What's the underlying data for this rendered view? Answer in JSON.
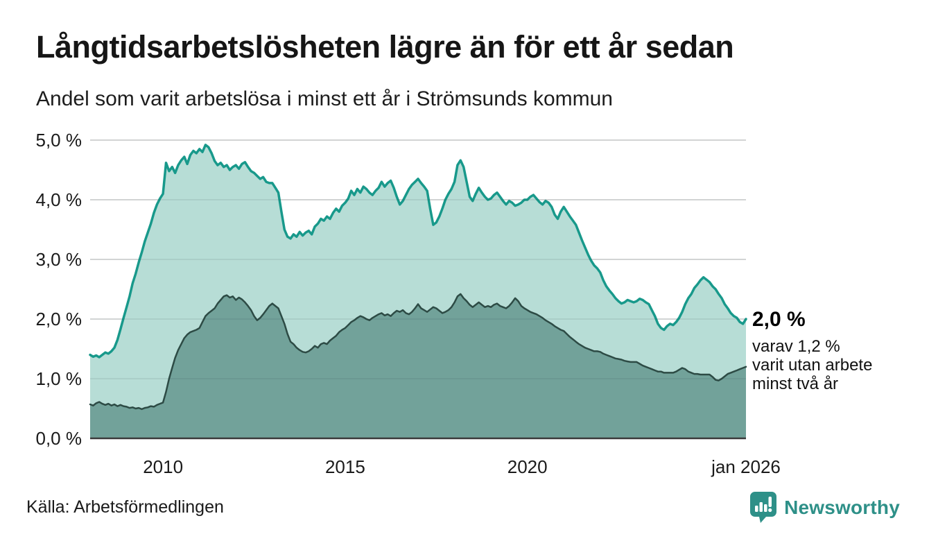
{
  "title": "Långtidsarbetslösheten lägre än för ett år sedan",
  "subtitle": "Andel som varit arbetslösa i minst ett år i Strömsunds kommun",
  "source": "Källa: Arbetsförmedlingen",
  "branding": {
    "name": "Newsworthy",
    "icon": "newsworthy-speech-bubble-bar-chart-icon",
    "accent_color": "#2e9088"
  },
  "annotation": {
    "value_label": "2,0 %",
    "detail_lines": "varav 1,2 %\nvarit utan arbete\nminst två år"
  },
  "chart_data": {
    "type": "area",
    "title": "Långtidsarbetslösheten lägre än för ett år sedan",
    "subtitle": "Andel som varit arbetslösa i minst ett år i Strömsunds kommun",
    "xlabel": "",
    "ylabel": "",
    "ylim": [
      0,
      5
    ],
    "grid": true,
    "stacked": false,
    "legend_position": "annotation-at-line-end",
    "y_ticks": [
      {
        "value": 5,
        "label": "5,0 %"
      },
      {
        "value": 4,
        "label": "4,0 %"
      },
      {
        "value": 3,
        "label": "3,0 %"
      },
      {
        "value": 2,
        "label": "2,0 %"
      },
      {
        "value": 1,
        "label": "1,0 %"
      },
      {
        "value": 0,
        "label": "0,0 %"
      }
    ],
    "x_ticks": [
      {
        "value": 2010.0,
        "label": "2010"
      },
      {
        "value": 2015.0,
        "label": "2015"
      },
      {
        "value": 2020.0,
        "label": "2020"
      },
      {
        "value": 2026.0,
        "label": "jan 2026"
      }
    ],
    "x_range": [
      2008.0,
      2026.0
    ],
    "x_start": "jan 2008",
    "x_end": "jan 2026",
    "frequency": "monthly",
    "colors": {
      "line_1yr": "#18998b",
      "fill_1yr": "#b5dcd5",
      "line_2yr": "#2d4b45",
      "fill_2yr": "#70a098",
      "gridline": "#d8d8d8",
      "baseline": "#3b3b3b"
    },
    "series": [
      {
        "name": "Andel arbetslösa minst ett år",
        "latest_value": 2.0,
        "values": [
          1.4,
          1.37,
          1.39,
          1.36,
          1.4,
          1.44,
          1.42,
          1.46,
          1.52,
          1.65,
          1.83,
          2.02,
          2.2,
          2.38,
          2.6,
          2.76,
          2.95,
          3.12,
          3.3,
          3.45,
          3.6,
          3.78,
          3.92,
          4.02,
          4.1,
          4.62,
          4.48,
          4.55,
          4.45,
          4.58,
          4.66,
          4.72,
          4.6,
          4.75,
          4.82,
          4.78,
          4.85,
          4.8,
          4.92,
          4.88,
          4.78,
          4.65,
          4.58,
          4.62,
          4.55,
          4.58,
          4.5,
          4.55,
          4.58,
          4.52,
          4.6,
          4.63,
          4.55,
          4.48,
          4.45,
          4.4,
          4.35,
          4.38,
          4.3,
          4.28,
          4.28,
          4.2,
          4.12,
          3.8,
          3.5,
          3.38,
          3.35,
          3.42,
          3.38,
          3.46,
          3.4,
          3.45,
          3.48,
          3.42,
          3.55,
          3.6,
          3.68,
          3.65,
          3.72,
          3.68,
          3.78,
          3.85,
          3.8,
          3.9,
          3.95,
          4.02,
          4.15,
          4.08,
          4.18,
          4.12,
          4.22,
          4.18,
          4.12,
          4.08,
          4.15,
          4.2,
          4.3,
          4.22,
          4.28,
          4.32,
          4.2,
          4.05,
          3.92,
          3.98,
          4.08,
          4.18,
          4.25,
          4.3,
          4.35,
          4.28,
          4.22,
          4.15,
          3.85,
          3.58,
          3.62,
          3.72,
          3.85,
          4.0,
          4.1,
          4.18,
          4.3,
          4.58,
          4.66,
          4.55,
          4.3,
          4.05,
          3.98,
          4.1,
          4.2,
          4.12,
          4.05,
          4.0,
          4.02,
          4.08,
          4.12,
          4.05,
          3.98,
          3.92,
          3.98,
          3.95,
          3.9,
          3.92,
          3.95,
          4.0,
          4.0,
          4.05,
          4.08,
          4.02,
          3.96,
          3.92,
          3.98,
          3.95,
          3.88,
          3.75,
          3.68,
          3.8,
          3.88,
          3.8,
          3.72,
          3.65,
          3.58,
          3.45,
          3.32,
          3.2,
          3.08,
          2.98,
          2.9,
          2.85,
          2.78,
          2.65,
          2.55,
          2.48,
          2.42,
          2.35,
          2.3,
          2.26,
          2.28,
          2.32,
          2.3,
          2.28,
          2.3,
          2.34,
          2.32,
          2.28,
          2.25,
          2.15,
          2.05,
          1.92,
          1.85,
          1.82,
          1.88,
          1.92,
          1.9,
          1.95,
          2.02,
          2.12,
          2.25,
          2.35,
          2.42,
          2.52,
          2.58,
          2.65,
          2.7,
          2.66,
          2.62,
          2.55,
          2.5,
          2.42,
          2.35,
          2.25,
          2.18,
          2.1,
          2.05,
          2.02,
          1.95,
          1.92,
          2.0
        ]
      },
      {
        "name": "Andel arbetslösa minst två år",
        "latest_value": 1.2,
        "values": [
          0.57,
          0.55,
          0.59,
          0.61,
          0.58,
          0.56,
          0.58,
          0.55,
          0.57,
          0.54,
          0.56,
          0.54,
          0.53,
          0.51,
          0.52,
          0.5,
          0.51,
          0.49,
          0.51,
          0.52,
          0.54,
          0.53,
          0.56,
          0.58,
          0.6,
          0.78,
          1.0,
          1.18,
          1.35,
          1.48,
          1.58,
          1.68,
          1.74,
          1.78,
          1.8,
          1.82,
          1.85,
          1.95,
          2.05,
          2.1,
          2.14,
          2.18,
          2.26,
          2.32,
          2.38,
          2.4,
          2.36,
          2.38,
          2.32,
          2.36,
          2.33,
          2.28,
          2.22,
          2.15,
          2.05,
          1.98,
          2.02,
          2.08,
          2.15,
          2.22,
          2.26,
          2.22,
          2.18,
          2.05,
          1.92,
          1.75,
          1.62,
          1.58,
          1.52,
          1.48,
          1.45,
          1.44,
          1.46,
          1.5,
          1.55,
          1.52,
          1.58,
          1.6,
          1.58,
          1.64,
          1.68,
          1.72,
          1.78,
          1.82,
          1.85,
          1.9,
          1.95,
          1.98,
          2.02,
          2.05,
          2.03,
          2.0,
          1.98,
          2.02,
          2.05,
          2.08,
          2.1,
          2.06,
          2.08,
          2.05,
          2.1,
          2.14,
          2.12,
          2.15,
          2.1,
          2.08,
          2.12,
          2.18,
          2.25,
          2.18,
          2.15,
          2.12,
          2.16,
          2.2,
          2.18,
          2.14,
          2.1,
          2.12,
          2.15,
          2.2,
          2.28,
          2.38,
          2.42,
          2.35,
          2.3,
          2.24,
          2.2,
          2.24,
          2.28,
          2.24,
          2.2,
          2.22,
          2.2,
          2.24,
          2.26,
          2.22,
          2.2,
          2.18,
          2.22,
          2.28,
          2.35,
          2.3,
          2.22,
          2.18,
          2.15,
          2.12,
          2.1,
          2.08,
          2.05,
          2.02,
          1.98,
          1.95,
          1.92,
          1.88,
          1.85,
          1.82,
          1.8,
          1.75,
          1.7,
          1.66,
          1.62,
          1.58,
          1.55,
          1.52,
          1.5,
          1.48,
          1.46,
          1.46,
          1.45,
          1.42,
          1.4,
          1.38,
          1.36,
          1.34,
          1.33,
          1.32,
          1.3,
          1.29,
          1.28,
          1.28,
          1.28,
          1.25,
          1.22,
          1.2,
          1.18,
          1.16,
          1.14,
          1.12,
          1.12,
          1.1,
          1.1,
          1.1,
          1.1,
          1.12,
          1.15,
          1.18,
          1.16,
          1.12,
          1.1,
          1.08,
          1.08,
          1.07,
          1.07,
          1.07,
          1.07,
          1.03,
          0.98,
          0.97,
          1.0,
          1.04,
          1.08,
          1.1,
          1.12,
          1.14,
          1.16,
          1.18,
          1.2
        ]
      }
    ]
  }
}
